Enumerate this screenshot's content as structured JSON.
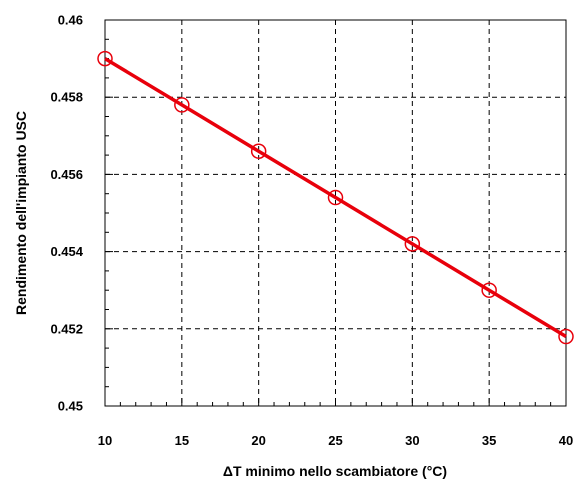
{
  "chart_data": {
    "type": "line",
    "title": "",
    "xlabel": "ΔT minimo nello scambiatore (°C)",
    "ylabel": "Rendimento dell'impianto USC",
    "xlim": [
      10,
      40
    ],
    "ylim": [
      0.45,
      0.46
    ],
    "x_ticks": [
      "10",
      "15",
      "20",
      "25",
      "30",
      "35",
      "40"
    ],
    "y_ticks": [
      "0.45",
      "0.452",
      "0.454",
      "0.456",
      "0.458",
      "0.46"
    ],
    "grid": true,
    "grid_style": "dashed",
    "series": [
      {
        "color": "#e8000b",
        "marker": "open-circle",
        "x": [
          10,
          15,
          20,
          25,
          30,
          35,
          40
        ],
        "y": [
          0.459,
          0.4578,
          0.4566,
          0.4554,
          0.4542,
          0.453,
          0.4518
        ]
      }
    ]
  }
}
